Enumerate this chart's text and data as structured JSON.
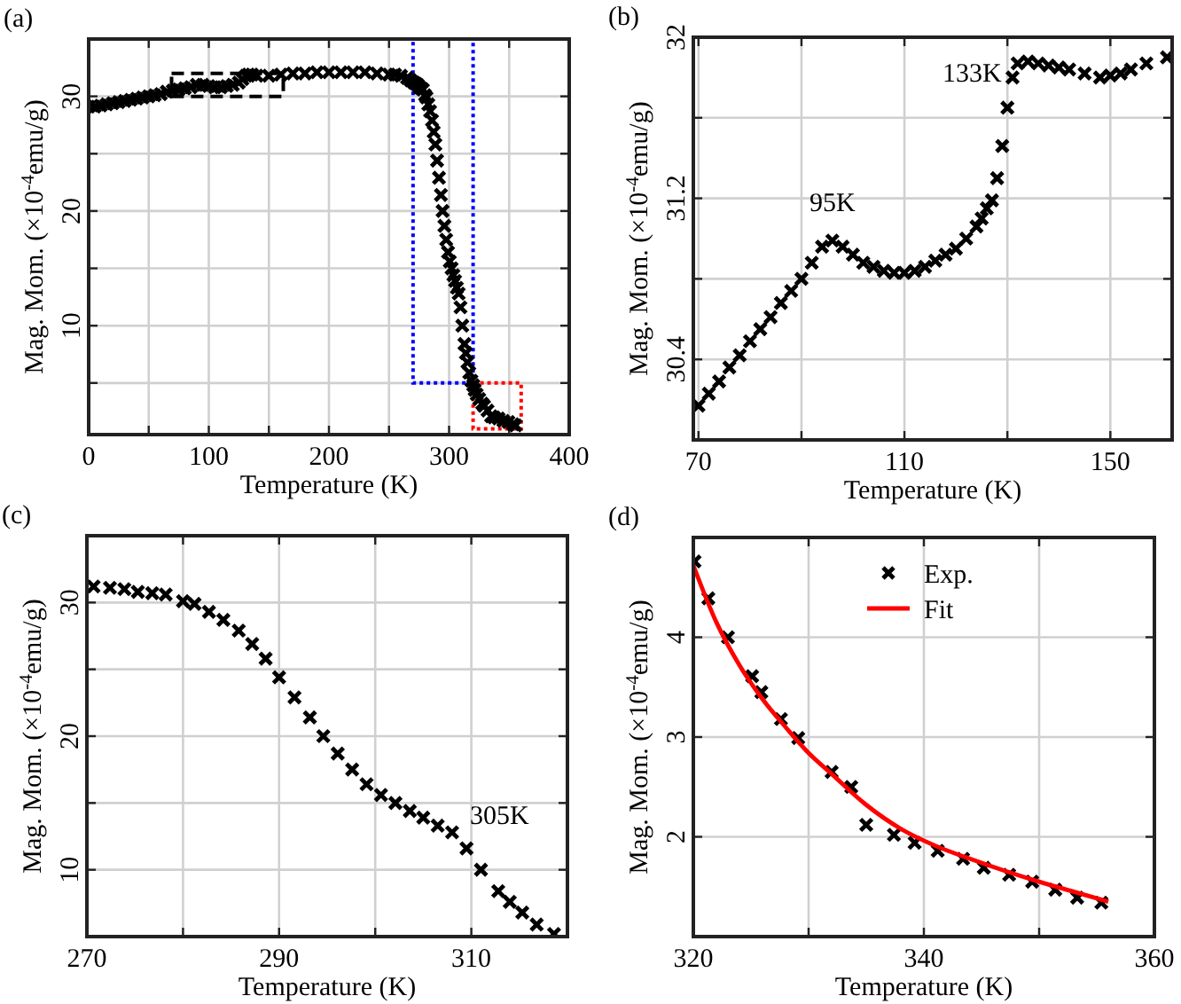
{
  "chart_data": [
    {
      "type": "scatter",
      "title": "(a)",
      "xlabel": "Temperature (K)",
      "ylabel": "Mag. Mom. (×10$^{-4}$emu/g)",
      "xlim": [
        0,
        400
      ],
      "xticks": [
        0,
        {
          "value": 50,
          "label": null
        },
        100,
        {
          "value": 150,
          "label": null
        },
        200,
        {
          "value": 250,
          "label": null
        },
        300,
        {
          "value": 350,
          "label": null
        },
        400
      ],
      "ylim": [
        0.5,
        35
      ],
      "yticks": [
        {
          "value": 5,
          "label": null
        },
        10,
        {
          "value": 15,
          "label": null
        },
        20,
        {
          "value": 25,
          "label": null
        },
        30
      ],
      "grid": true,
      "marker": "cross",
      "series": [
        {
          "color": "#000000",
          "x": [
            0,
            5,
            10,
            15,
            20,
            25,
            30,
            35,
            40,
            45,
            50,
            55,
            60,
            65,
            70,
            75,
            80,
            85,
            90,
            95,
            100,
            105,
            110,
            115,
            120,
            125,
            128,
            131,
            133,
            136,
            140,
            150,
            160,
            170,
            180,
            190,
            200,
            210,
            220,
            230,
            240,
            250,
            255,
            260,
            265,
            268,
            270.7,
            272.4,
            273.9,
            275.3,
            276.8,
            278.2,
            280,
            281.2,
            282.7,
            284.2,
            285.8,
            287.2,
            288.6,
            290,
            291.6,
            293.2,
            294.6,
            296.1,
            297.6,
            299.1,
            300.6,
            302.1,
            303.6,
            305,
            306.5,
            308,
            309.5,
            311,
            312.8,
            314,
            315.3,
            316.8,
            318.6,
            320.1,
            321.3,
            323,
            325.1,
            327.6,
            329.1,
            332,
            335,
            337.4,
            341.2,
            345.2,
            349.4,
            353.3,
            355.4
          ],
          "values": [
            29.1,
            29.1,
            29.2,
            29.3,
            29.4,
            29.5,
            29.6,
            29.7,
            29.8,
            29.9,
            30.0,
            30.1,
            30.2,
            30.4,
            30.5,
            30.6,
            30.7,
            30.8,
            31.0,
            31.0,
            30.9,
            30.8,
            30.8,
            30.9,
            31.0,
            31.2,
            31.5,
            31.8,
            31.9,
            31.9,
            31.8,
            31.8,
            31.9,
            32.0,
            32.0,
            32.1,
            32.1,
            32.1,
            32.1,
            32.1,
            32.0,
            31.9,
            31.9,
            31.8,
            31.6,
            31.4,
            31.2,
            31.1,
            31.0,
            30.8,
            30.7,
            30.6,
            30.1,
            29.9,
            29.3,
            28.7,
            27.9,
            26.9,
            25.8,
            24.4,
            22.9,
            21.4,
            20.0,
            18.7,
            17.5,
            16.4,
            15.6,
            15.0,
            14.4,
            13.9,
            13.3,
            12.8,
            11.6,
            10.0,
            8.4,
            7.6,
            6.8,
            5.9,
            5.2,
            4.8,
            4.4,
            4.0,
            3.6,
            3.2,
            3.0,
            2.6,
            2.1,
            2.0,
            1.9,
            1.7,
            1.6,
            1.4,
            1.3
          ]
        }
      ]
    },
    {
      "type": "scatter",
      "title": "(b)",
      "xlabel": "Temperature (K)",
      "ylabel": "Mag. Mom. (×10$^{-4}$emu/g)",
      "xlim": [
        69,
        162
      ],
      "xticks": [
        70,
        {
          "value": 90,
          "label": null
        },
        110,
        {
          "value": 130,
          "label": null
        },
        150
      ],
      "ylim": [
        30,
        32
      ],
      "yticks": [
        30.4,
        {
          "value": 30.8,
          "label": null
        },
        31.2,
        {
          "value": 31.6,
          "label": null
        },
        32
      ],
      "grid": true,
      "marker": "cross",
      "annotations": [
        {
          "text": "95K",
          "x": 96,
          "y": 30.99
        },
        {
          "text": "133K",
          "x": 133,
          "y": 31.88
        }
      ],
      "series": [
        {
          "color": "#000000",
          "x": [
            70,
            72,
            74,
            76,
            78,
            80,
            82,
            84,
            86,
            88,
            90,
            92,
            94,
            96,
            98,
            100,
            102,
            104,
            106,
            108,
            110,
            112,
            114,
            116,
            118,
            120,
            122,
            124,
            125,
            126,
            127,
            128,
            129,
            130,
            131,
            132,
            134,
            136,
            138,
            140,
            142,
            145,
            148,
            150,
            152,
            154,
            157,
            161
          ],
          "values": [
            30.17,
            30.23,
            30.29,
            30.36,
            30.42,
            30.49,
            30.55,
            30.61,
            30.68,
            30.74,
            30.8,
            30.88,
            30.96,
            30.99,
            30.96,
            30.92,
            30.88,
            30.86,
            30.84,
            30.83,
            30.83,
            30.84,
            30.86,
            30.89,
            30.92,
            30.95,
            31.0,
            31.06,
            31.1,
            31.15,
            31.19,
            31.3,
            31.46,
            31.65,
            31.8,
            31.87,
            31.88,
            31.87,
            31.86,
            31.85,
            31.84,
            31.82,
            31.8,
            31.81,
            31.82,
            31.84,
            31.87,
            31.9
          ]
        }
      ]
    },
    {
      "type": "scatter",
      "title": "(c)",
      "xlabel": "Temperature (K)",
      "ylabel": "Mag. Mom. (×10$^{-4}$emu/g)",
      "xlim": [
        270,
        320
      ],
      "xticks": [
        270,
        {
          "value": 280,
          "label": null
        },
        290,
        {
          "value": 300,
          "label": null
        },
        310
      ],
      "ylim": [
        5,
        35
      ],
      "yticks": [
        10,
        {
          "value": 15,
          "label": null
        },
        20,
        {
          "value": 25,
          "label": null
        },
        30
      ],
      "grid": true,
      "marker": "cross",
      "annotations": [
        {
          "text": "305K",
          "x": 308,
          "y": 12.8
        }
      ],
      "series": [
        {
          "color": "#000000",
          "x": [
            270.7,
            272.4,
            273.9,
            275.3,
            276.8,
            278.2,
            280,
            281.2,
            282.7,
            284.2,
            285.8,
            287.2,
            288.6,
            290,
            291.6,
            293.2,
            294.6,
            296.1,
            297.6,
            299.1,
            300.6,
            302.1,
            303.6,
            305,
            306.5,
            308,
            309.5,
            311,
            312.8,
            314,
            315.3,
            316.8,
            318.6
          ],
          "values": [
            31.2,
            31.1,
            31.0,
            30.8,
            30.7,
            30.6,
            30.1,
            29.9,
            29.3,
            28.7,
            27.9,
            26.9,
            25.8,
            24.4,
            22.9,
            21.4,
            20.0,
            18.7,
            17.5,
            16.4,
            15.6,
            15.0,
            14.4,
            13.9,
            13.3,
            12.8,
            11.6,
            10.0,
            8.4,
            7.6,
            6.8,
            5.9,
            5.2
          ]
        }
      ]
    },
    {
      "type": "scatter",
      "title": "(d)",
      "xlabel": "Temperature (K)",
      "ylabel": "Mag. Mom. (×10$^{-4}$emu/g)",
      "xlim": [
        320,
        360
      ],
      "xticks": [
        320,
        {
          "value": 330,
          "label": null
        },
        340,
        {
          "value": 350,
          "label": null
        },
        360
      ],
      "ylim": [
        1,
        5
      ],
      "yticks": [
        2,
        3,
        4
      ],
      "grid": true,
      "marker": "cross",
      "legend": "top",
      "series": [
        {
          "name": "Exp.",
          "color": "#000000",
          "x": [
            320.1,
            321.3,
            323,
            325.1,
            325.9,
            327.6,
            329.1,
            332,
            333.7,
            335,
            337.4,
            339.2,
            341.2,
            343.4,
            345.2,
            347.4,
            349.4,
            351.4,
            353.3,
            355.4
          ],
          "values": [
            4.76,
            4.39,
            4.0,
            3.61,
            3.45,
            3.18,
            2.99,
            2.65,
            2.5,
            2.12,
            2.02,
            1.94,
            1.86,
            1.78,
            1.69,
            1.62,
            1.55,
            1.47,
            1.39,
            1.34
          ]
        },
        {
          "name": "Fit",
          "type": "line",
          "marker": "none",
          "color": "#ff0000",
          "x": [
            320,
            322,
            324,
            326,
            328,
            330,
            332,
            335,
            338,
            341,
            344,
            347,
            350,
            353,
            356
          ],
          "values": [
            4.72,
            4.15,
            3.72,
            3.38,
            3.1,
            2.84,
            2.63,
            2.32,
            2.08,
            1.91,
            1.78,
            1.66,
            1.55,
            1.45,
            1.35
          ]
        }
      ]
    }
  ]
}
